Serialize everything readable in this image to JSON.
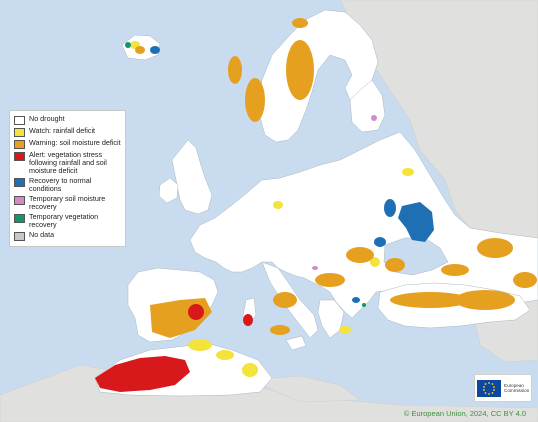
{
  "legend": {
    "items": [
      {
        "label": "No drought",
        "color": "#ffffff"
      },
      {
        "label": "Watch: rainfall deficit",
        "color": "#f3e33a"
      },
      {
        "label": "Warning: soil moisture deficit",
        "color": "#e6a020"
      },
      {
        "label": "Alert: vegetation stress following rainfall and soil moisture deficit",
        "color": "#d7191c"
      },
      {
        "label": "Recovery to normal conditions",
        "color": "#1f6fb5"
      },
      {
        "label": "Temporary soil moisture recovery",
        "color": "#d48bc5"
      },
      {
        "label": "Temporary vegetation recovery",
        "color": "#14946c"
      },
      {
        "label": "No data",
        "color": "#c8c8c8"
      }
    ]
  },
  "colors": {
    "sea": "#c9dcef",
    "outside_land": "#e0e0de",
    "eu_blue": "#0e47a1",
    "star": "#ffdd00"
  },
  "logo": {
    "text_line1": "European",
    "text_line2": "Commission"
  },
  "copyright": "© European Union, 2024, CC BY 4.0"
}
